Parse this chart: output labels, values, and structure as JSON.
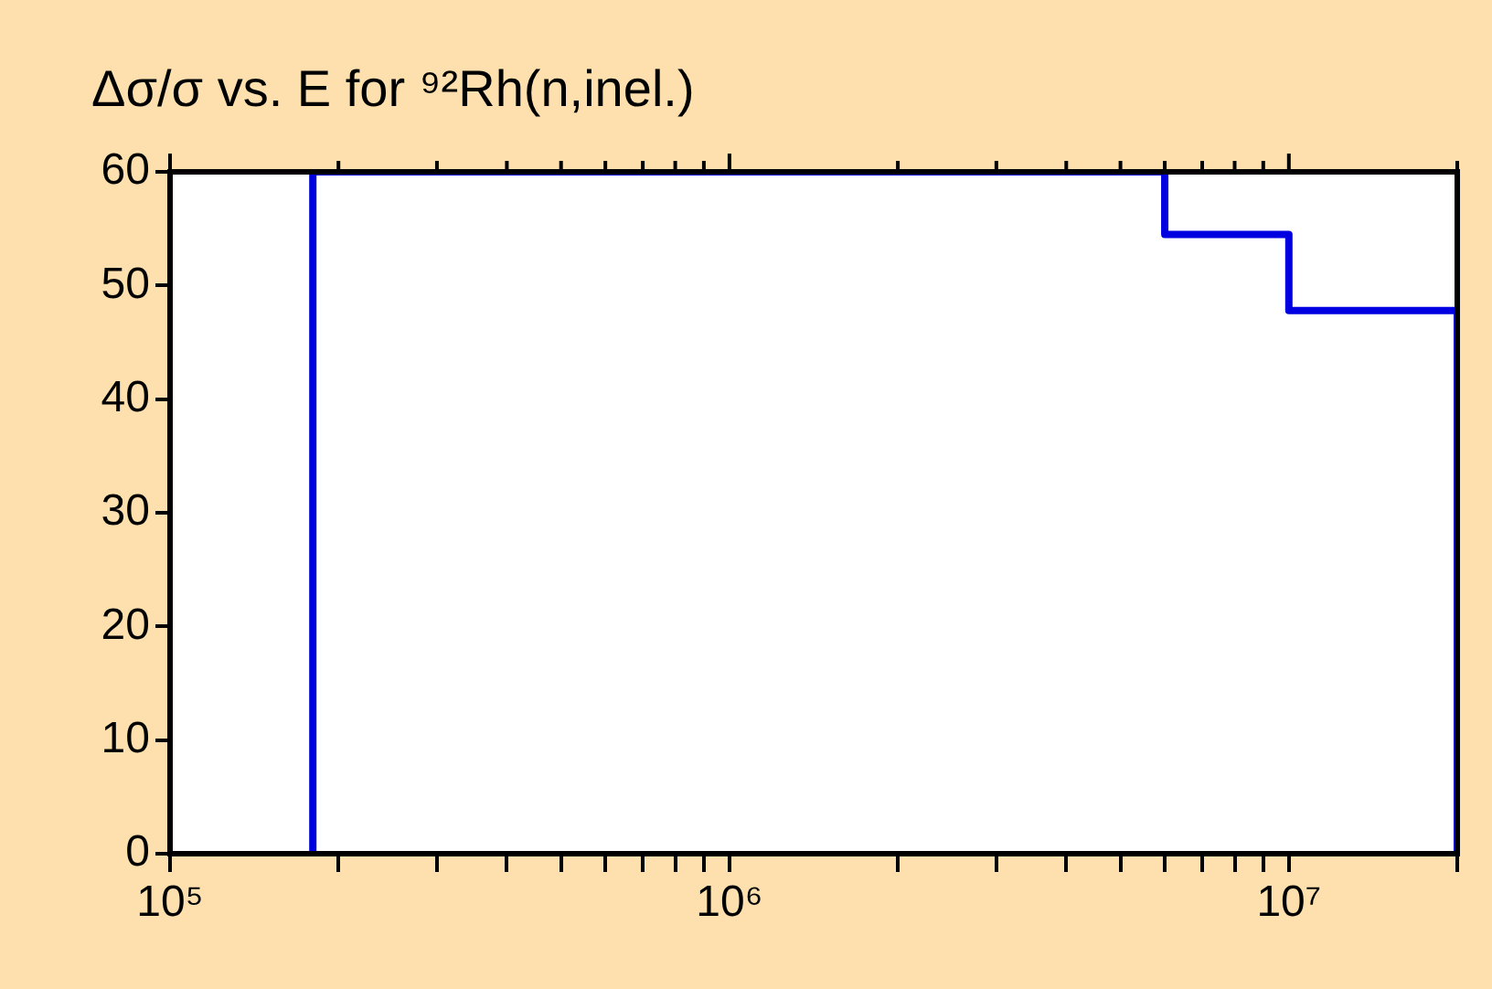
{
  "chart_data": {
    "type": "step",
    "title": "Δσ/σ vs. E for ⁹²Rh(n,inel.)",
    "log": "x",
    "x": [
      180000,
      180000,
      6000000,
      10000000,
      20000000
    ],
    "series": [
      {
        "color": "#0000e0",
        "values": [
          0,
          60,
          54.5,
          47.8,
          0
        ]
      }
    ],
    "xlim": [
      100000,
      20000000
    ],
    "xticks": [
      {
        "value": 100000,
        "label": "10⁵"
      },
      {
        "value": 200000,
        "label": null
      },
      {
        "value": 300000,
        "label": null
      },
      {
        "value": 400000,
        "label": null
      },
      {
        "value": 500000,
        "label": null
      },
      {
        "value": 600000,
        "label": null
      },
      {
        "value": 700000,
        "label": null
      },
      {
        "value": 800000,
        "label": null
      },
      {
        "value": 900000,
        "label": null
      },
      {
        "value": 1000000,
        "label": "10⁶"
      },
      {
        "value": 2000000,
        "label": null
      },
      {
        "value": 3000000,
        "label": null
      },
      {
        "value": 4000000,
        "label": null
      },
      {
        "value": 5000000,
        "label": null
      },
      {
        "value": 6000000,
        "label": null
      },
      {
        "value": 7000000,
        "label": null
      },
      {
        "value": 8000000,
        "label": null
      },
      {
        "value": 9000000,
        "label": null
      },
      {
        "value": 10000000,
        "label": "10⁷"
      },
      {
        "value": 20000000,
        "label": null
      }
    ],
    "ylim": [
      0,
      60
    ],
    "yticks": [
      0,
      10,
      20,
      30,
      40,
      50,
      60
    ],
    "grid": false,
    "legend": false,
    "marker": "none",
    "line_style": "solid"
  }
}
